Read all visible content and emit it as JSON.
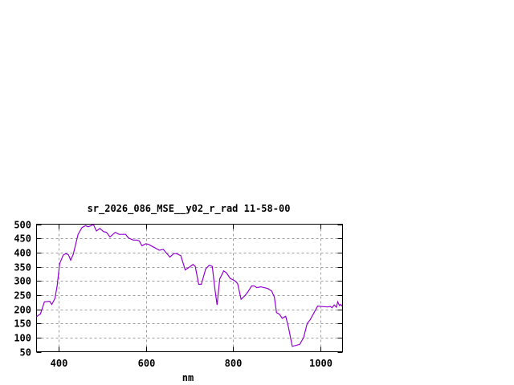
{
  "chart_data": {
    "type": "line",
    "title": "sr_2026_086_MSE__y02_r_rad 11-58-00",
    "xlabel": "nm",
    "ylabel": "",
    "xlim": [
      350,
      1050
    ],
    "ylim": [
      50,
      500
    ],
    "xticks": [
      400,
      600,
      800,
      1000
    ],
    "yticks": [
      50,
      100,
      150,
      200,
      250,
      300,
      350,
      400,
      450,
      500
    ],
    "grid": true,
    "legend": "none",
    "series": [
      {
        "color": "#9400d3",
        "x": [
          350,
          359,
          368,
          380,
          385,
          392,
          397,
          403,
          411,
          417,
          423,
          428,
          434,
          445,
          454,
          462,
          468,
          475,
          480,
          487,
          495,
          503,
          510,
          518,
          530,
          539,
          554,
          560,
          571,
          580,
          585,
          591,
          600,
          606,
          617,
          631,
          640,
          647,
          655,
          664,
          670,
          680,
          690,
          699,
          708,
          713,
          721,
          727,
          737,
          745,
          752,
          758,
          763,
          769,
          778,
          784,
          793,
          805,
          810,
          818,
          827,
          833,
          842,
          848,
          854,
          863,
          879,
          888,
          894,
          899,
          906,
          912,
          920,
          926,
          935,
          945,
          952,
          961,
          969,
          976,
          985,
          993,
          1007,
          1016,
          1022,
          1026,
          1031,
          1036,
          1039,
          1043,
          1046,
          1049
        ],
        "y": [
          174,
          184,
          226,
          228,
          217,
          238,
          281,
          361,
          391,
          396,
          392,
          373,
          394,
          464,
          488,
          495,
          491,
          495,
          499,
          476,
          485,
          474,
          471,
          455,
          471,
          464,
          464,
          452,
          444,
          444,
          441,
          424,
          431,
          429,
          420,
          408,
          411,
          398,
          384,
          396,
          396,
          389,
          339,
          348,
          358,
          351,
          288,
          288,
          342,
          355,
          351,
          271,
          215,
          307,
          335,
          329,
          309,
          299,
          290,
          235,
          248,
          260,
          282,
          282,
          276,
          279,
          273,
          264,
          243,
          188,
          182,
          168,
          175,
          139,
          69,
          73,
          76,
          100,
          149,
          163,
          188,
          211,
          209,
          208,
          210,
          205,
          215,
          207,
          226,
          213,
          217,
          210
        ]
      }
    ]
  }
}
